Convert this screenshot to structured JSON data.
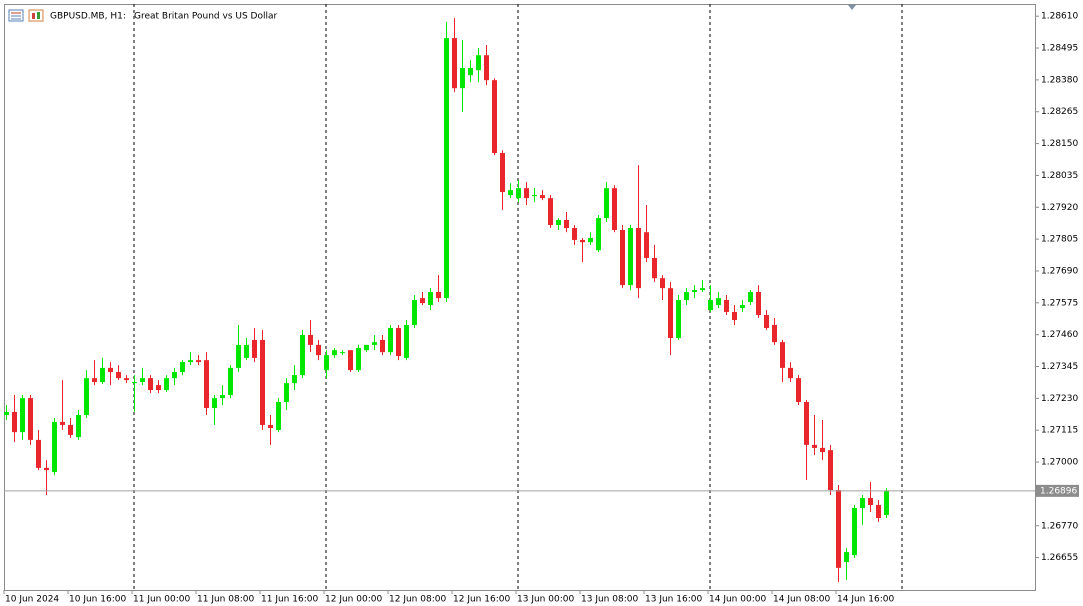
{
  "chart_data": {
    "type": "candlestick",
    "symbol": "GBPUSD.MB, H1:",
    "description": "Great Britan Pound vs US Dollar",
    "categories": [
      "10 Jun 2024",
      null,
      null,
      null,
      null,
      null,
      null,
      null,
      "10 Jun 16:00",
      null,
      null,
      null,
      null,
      null,
      null,
      null,
      "11 Jun 00:00",
      null,
      null,
      null,
      null,
      null,
      null,
      null,
      "11 Jun 08:00",
      null,
      null,
      null,
      null,
      null,
      null,
      null,
      "11 Jun 16:00",
      null,
      null,
      null,
      null,
      null,
      null,
      null,
      "12 Jun 00:00",
      null,
      null,
      null,
      null,
      null,
      null,
      null,
      "12 Jun 08:00",
      null,
      null,
      null,
      null,
      null,
      null,
      null,
      "12 Jun 16:00",
      null,
      null,
      null,
      null,
      null,
      null,
      null,
      "13 Jun 00:00",
      null,
      null,
      null,
      null,
      null,
      null,
      null,
      "13 Jun 08:00",
      null,
      null,
      null,
      null,
      null,
      null,
      null,
      "13 Jun 16:00",
      null,
      null,
      null,
      null,
      null,
      null,
      null,
      "14 Jun 00:00",
      null,
      null,
      null,
      null,
      null,
      null,
      null,
      "14 Jun 08:00",
      null,
      null,
      null,
      null,
      null,
      null,
      null,
      "14 Jun 16:00",
      null,
      null,
      null,
      null,
      null,
      null
    ],
    "open": [
      1.2717,
      1.27181,
      1.27108,
      1.27231,
      1.2708,
      1.26979,
      1.26964,
      1.27145,
      1.27134,
      1.2709,
      1.2717,
      1.27303,
      1.27289,
      1.2734,
      1.27325,
      1.27303,
      1.27285,
      1.27289,
      1.27303,
      1.27278,
      1.2726,
      1.27303,
      1.27325,
      1.27361,
      1.27368,
      1.27368,
      1.27195,
      1.27231,
      1.27242,
      1.2734,
      1.27376,
      1.27441,
      1.27441,
      1.27134,
      1.27116,
      1.27217,
      1.27285,
      1.27314,
      1.27459,
      1.27423,
      1.27332,
      1.27386,
      1.27397,
      1.27404,
      1.27332,
      1.27404,
      1.27423,
      1.27441,
      1.27397,
      1.27484,
      1.27376,
      1.27495,
      1.27592,
      1.27567,
      1.27614,
      1.27592,
      1.28531,
      1.2835,
      1.28397,
      1.28415,
      1.28469,
      1.28379,
      1.28116,
      1.27964,
      1.27953,
      1.27989,
      1.27964,
      1.27964,
      1.27953,
      1.27856,
      1.27874,
      1.27845,
      1.27802,
      1.27794,
      1.27765,
      1.27881,
      1.27989,
      1.27838,
      1.27639,
      1.27845,
      1.2783,
      1.27737,
      1.27664,
      1.27628,
      1.27448,
      1.27585,
      1.27614,
      1.27621,
      1.27549,
      1.27567,
      1.27585,
      1.27542,
      1.27556,
      1.27578,
      1.27614,
      1.27531,
      1.27495,
      1.27433,
      1.2734,
      1.27303,
      1.27217,
      1.27062,
      1.27051,
      1.27043,
      1.26899,
      1.26639,
      1.26664,
      1.26834,
      1.2687,
      1.26845,
      1.26809
    ],
    "high": [
      1.27206,
      1.27242,
      1.27242,
      1.27242,
      1.27116,
      1.27007,
      1.27159,
      1.27296,
      1.27159,
      1.27188,
      1.27332,
      1.27368,
      1.27376,
      1.27361,
      1.2735,
      1.27314,
      1.27314,
      1.2734,
      1.27314,
      1.27296,
      1.27314,
      1.2734,
      1.27368,
      1.27397,
      1.27386,
      1.27397,
      1.27242,
      1.27278,
      1.2735,
      1.27495,
      1.27448,
      1.27484,
      1.27477,
      1.2717,
      1.27231,
      1.27303,
      1.2735,
      1.27477,
      1.27513,
      1.27441,
      1.27404,
      1.27412,
      1.27404,
      1.27404,
      1.27423,
      1.27423,
      1.27459,
      1.27459,
      1.27495,
      1.27495,
      1.27513,
      1.27603,
      1.27614,
      1.27628,
      1.27675,
      1.28589,
      1.28603,
      1.28524,
      1.28451,
      1.28495,
      1.28506,
      1.28386,
      1.28126,
      1.28007,
      1.28018,
      1.28011,
      1.27989,
      1.27982,
      1.27964,
      1.27881,
      1.27903,
      1.27856,
      1.27809,
      1.2783,
      1.27892,
      1.28011,
      1.28,
      1.27856,
      1.27856,
      1.28072,
      1.27928,
      1.27784,
      1.27675,
      1.2765,
      1.27603,
      1.27628,
      1.27639,
      1.27657,
      1.27639,
      1.27614,
      1.27603,
      1.27567,
      1.27585,
      1.27621,
      1.27639,
      1.27549,
      1.2752,
      1.27441,
      1.27361,
      1.27314,
      1.27224,
      1.2717,
      1.27152,
      1.27062,
      1.26917,
      1.2669,
      1.26845,
      1.26881,
      1.26928,
      1.26863,
      1.26906
    ],
    "low": [
      1.27152,
      1.27072,
      1.2708,
      1.27062,
      1.26971,
      1.26881,
      1.26953,
      1.27116,
      1.27087,
      1.2708,
      1.27159,
      1.27278,
      1.27282,
      1.27278,
      1.27296,
      1.27285,
      1.27181,
      1.27278,
      1.27249,
      1.27249,
      1.27253,
      1.27278,
      1.27314,
      1.2735,
      1.2735,
      1.2717,
      1.27134,
      1.27206,
      1.27231,
      1.27325,
      1.27368,
      1.27361,
      1.27116,
      1.27062,
      1.27108,
      1.27188,
      1.2726,
      1.27303,
      1.27397,
      1.27368,
      1.27303,
      1.27376,
      1.27386,
      1.27325,
      1.27325,
      1.27397,
      1.27404,
      1.27386,
      1.27386,
      1.27368,
      1.27368,
      1.27484,
      1.27567,
      1.27549,
      1.27578,
      1.27578,
      1.28336,
      1.28264,
      1.28372,
      1.28372,
      1.28361,
      1.28108,
      1.2791,
      1.27953,
      1.27939,
      1.27928,
      1.27939,
      1.27946,
      1.27845,
      1.27838,
      1.2783,
      1.27784,
      1.27722,
      1.27784,
      1.27758,
      1.27867,
      1.2783,
      1.27628,
      1.27621,
      1.27592,
      1.27722,
      1.2765,
      1.27585,
      1.27386,
      1.27441,
      1.27567,
      1.27592,
      1.27614,
      1.27542,
      1.27556,
      1.27531,
      1.27495,
      1.27542,
      1.27567,
      1.2752,
      1.27477,
      1.27423,
      1.27289,
      1.27289,
      1.27206,
      1.26935,
      1.27025,
      1.27007,
      1.26881,
      1.26567,
      1.26574,
      1.26654,
      1.26773,
      1.2682,
      1.26784,
      1.26798
    ],
    "close": [
      1.27181,
      1.27108,
      1.27231,
      1.2708,
      1.26979,
      1.26971,
      1.27145,
      1.27134,
      1.27098,
      1.2717,
      1.27303,
      1.27289,
      1.2734,
      1.27325,
      1.27303,
      1.27296,
      1.27289,
      1.27303,
      1.2726,
      1.2726,
      1.27303,
      1.27325,
      1.27361,
      1.27368,
      1.27361,
      1.27195,
      1.27231,
      1.27242,
      1.2734,
      1.27423,
      1.27423,
      1.27376,
      1.27134,
      1.27123,
      1.27217,
      1.27285,
      1.27314,
      1.27459,
      1.27423,
      1.27386,
      1.27386,
      1.27404,
      1.27397,
      1.27332,
      1.27412,
      1.27423,
      1.27433,
      1.27397,
      1.27484,
      1.27383,
      1.27495,
      1.27585,
      1.27574,
      1.27614,
      1.27592,
      1.28531,
      1.2835,
      1.28423,
      1.28423,
      1.28469,
      1.28379,
      1.28116,
      1.27975,
      1.27982,
      1.27989,
      1.27953,
      1.27964,
      1.27953,
      1.27856,
      1.27874,
      1.27845,
      1.27802,
      1.27794,
      1.27809,
      1.27881,
      1.27989,
      1.27838,
      1.27639,
      1.27845,
      1.27628,
      1.27737,
      1.27664,
      1.27628,
      1.27448,
      1.27585,
      1.27614,
      1.27621,
      1.27628,
      1.27585,
      1.27592,
      1.27542,
      1.27513,
      1.27567,
      1.27614,
      1.27531,
      1.27484,
      1.27433,
      1.2734,
      1.27303,
      1.27217,
      1.27062,
      1.27051,
      1.27036,
      1.26899,
      1.26618,
      1.26675,
      1.26834,
      1.2687,
      1.26845,
      1.26798,
      1.26896
    ],
    "up_color": "#00e600",
    "down_color": "#e8262b",
    "current_price": 1.26896,
    "period_separators": true,
    "grid": false,
    "ylim": [
      1.26538,
      1.28654
    ],
    "yticks": [
      {
        "value": 1.2861,
        "label": "1.28610"
      },
      1.28495,
      {
        "value": 1.2838,
        "label": "1.28380"
      },
      1.28265,
      {
        "value": 1.2815,
        "label": "1.28150"
      },
      1.28035,
      {
        "value": 1.2792,
        "label": "1.27920"
      },
      1.27805,
      {
        "value": 1.2769,
        "label": "1.27690"
      },
      1.27575,
      {
        "value": 1.2746,
        "label": "1.27460"
      },
      1.27345,
      {
        "value": 1.2723,
        "label": "1.27230"
      },
      1.27115,
      {
        "value": 1.27,
        "label": "1.27000"
      },
      {
        "value": 1.2677,
        "label": "1.26770"
      },
      1.26655
    ]
  }
}
